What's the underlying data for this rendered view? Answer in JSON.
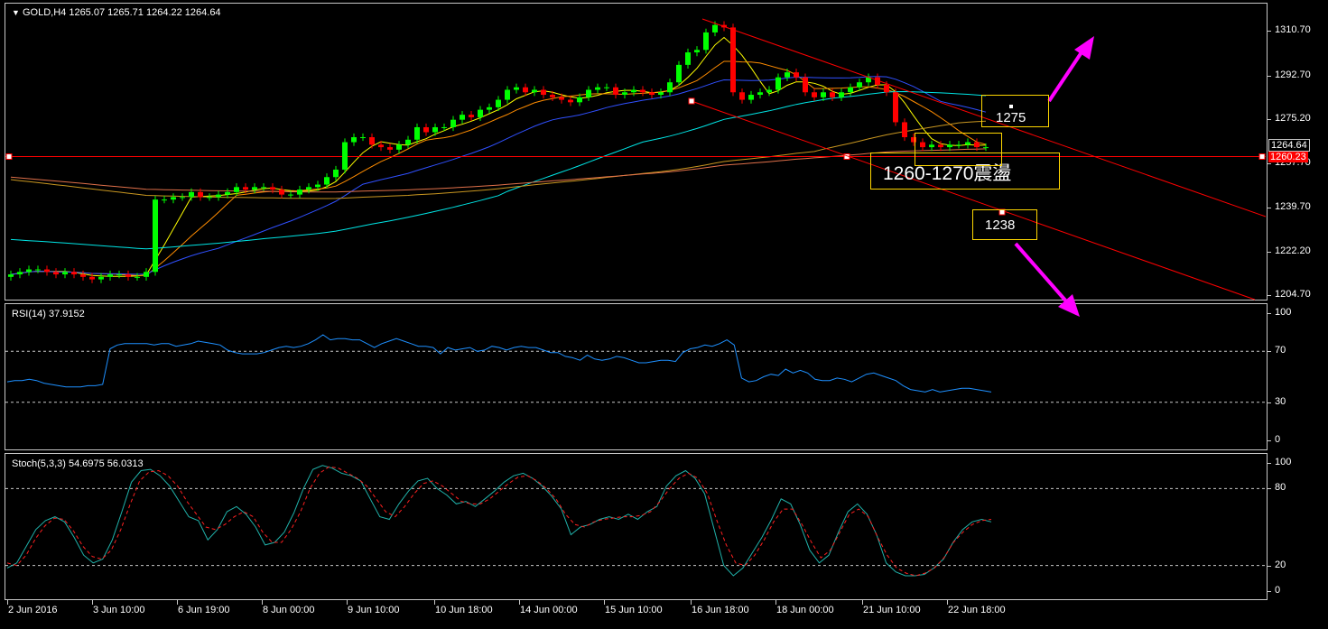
{
  "chart_data": [
    {
      "type": "candlestick",
      "header": "GOLD,H4  1265.07 1265.71 1264.22 1264.64",
      "symbol": "GOLD",
      "timeframe": "H4",
      "ohlc_current": {
        "open": 1265.07,
        "high": 1265.71,
        "low": 1264.22,
        "close": 1264.64
      },
      "y_ticks": [
        "1310.70",
        "1292.70",
        "1275.20",
        "1257.70",
        "1239.70",
        "1222.20",
        "1204.70"
      ],
      "ylim": [
        1203,
        1324
      ],
      "current_price_label": "1264.64",
      "horizontal_line_label": "1260.23",
      "horizontal_line_value": 1260.23,
      "x_ticks": [
        "2 Jun 2016",
        "3 Jun 10:00",
        "6 Jun 19:00",
        "8 Jun 00:00",
        "9 Jun 10:00",
        "10 Jun 18:00",
        "14 Jun 00:00",
        "15 Jun 10:00",
        "16 Jun 18:00",
        "18 Jun 00:00",
        "21 Jun 10:00",
        "22 Jun 18:00"
      ],
      "closes": [
        1213,
        1214,
        1215,
        1215,
        1214,
        1213,
        1214,
        1213,
        1212,
        1211,
        1212,
        1213,
        1213,
        1212,
        1212,
        1214,
        1243,
        1243,
        1244,
        1244,
        1246,
        1244,
        1244,
        1245,
        1246,
        1248,
        1247,
        1248,
        1248,
        1247,
        1245,
        1245,
        1247,
        1248,
        1249,
        1252,
        1255,
        1266,
        1268,
        1268,
        1265,
        1264,
        1263,
        1265,
        1267,
        1272,
        1270,
        1272,
        1272,
        1275,
        1277,
        1276,
        1279,
        1280,
        1283,
        1287,
        1288,
        1286,
        1287,
        1285,
        1284,
        1283,
        1282,
        1284,
        1287,
        1288,
        1288,
        1285,
        1286,
        1287,
        1286,
        1285,
        1286,
        1290,
        1297,
        1302,
        1303,
        1310,
        1313,
        1312,
        1286,
        1283,
        1285,
        1286,
        1287,
        1292,
        1294,
        1292,
        1286,
        1284,
        1286,
        1284,
        1286,
        1288,
        1290,
        1292,
        1289,
        1286,
        1274,
        1268,
        1266,
        1264,
        1265,
        1264,
        1265,
        1265,
        1266,
        1264,
        1264
      ],
      "annotations": [
        {
          "label": "1275",
          "target_direction": "up"
        },
        {
          "label": "1260-1270震盪"
        },
        {
          "label": "1238",
          "target_direction": "down"
        }
      ],
      "accent_colors": {
        "bull": "#00ff00",
        "bear": "#ff0000",
        "channel": "#ff0000",
        "arrow": "#ff00ff",
        "box": "#ffd700"
      }
    },
    {
      "type": "line",
      "title": "RSI(14) 37.9152",
      "name": "RSI(14)",
      "value": 37.9152,
      "y_ticks": [
        "100",
        "70",
        "30",
        "0"
      ],
      "levels": [
        70,
        30
      ],
      "ylim": [
        0,
        100
      ],
      "values": [
        46,
        47,
        47,
        48,
        47,
        45,
        44,
        43,
        42,
        42,
        42,
        43,
        43,
        44,
        72,
        75,
        76,
        76,
        76,
        76,
        75,
        76,
        76,
        74,
        75,
        76,
        78,
        77,
        76,
        75,
        71,
        69,
        68,
        68,
        68,
        69,
        71,
        73,
        74,
        73,
        74,
        76,
        79,
        83,
        79,
        80,
        80,
        79,
        79,
        76,
        73,
        76,
        78,
        80,
        78,
        76,
        74,
        74,
        73,
        68,
        73,
        71,
        72,
        73,
        70,
        71,
        74,
        73,
        71,
        73,
        74,
        73,
        73,
        71,
        69,
        69,
        66,
        65,
        63,
        67,
        64,
        63,
        64,
        66,
        65,
        63,
        61,
        61,
        62,
        63,
        63,
        62,
        69,
        72,
        73,
        75,
        74,
        76,
        79,
        75,
        49,
        46,
        47,
        50,
        52,
        51,
        56,
        53,
        55,
        53,
        48,
        47,
        47,
        49,
        48,
        46,
        49,
        52,
        53,
        51,
        49,
        47,
        43,
        40,
        39,
        38,
        40,
        38,
        39,
        40,
        41,
        41,
        40,
        39,
        38
      ]
    },
    {
      "type": "line",
      "title": "Stoch(5,3,3) 54.6975 56.0313",
      "name": "Stoch(5,3,3)",
      "main_value": 54.6975,
      "signal_value": 56.0313,
      "y_ticks": [
        "100",
        "80",
        "20",
        "0"
      ],
      "levels": [
        80,
        20
      ],
      "ylim": [
        0,
        100
      ],
      "main": [
        18,
        22,
        35,
        48,
        55,
        58,
        54,
        42,
        28,
        22,
        25,
        40,
        62,
        85,
        94,
        95,
        90,
        82,
        70,
        58,
        55,
        40,
        48,
        62,
        66,
        60,
        50,
        36,
        38,
        46,
        61,
        80,
        95,
        98,
        96,
        92,
        90,
        86,
        72,
        58,
        56,
        68,
        78,
        86,
        88,
        80,
        75,
        68,
        70,
        66,
        72,
        78,
        85,
        90,
        92,
        88,
        82,
        74,
        64,
        44,
        50,
        52,
        56,
        58,
        56,
        60,
        56,
        62,
        66,
        82,
        90,
        94,
        88,
        76,
        48,
        20,
        12,
        18,
        30,
        42,
        56,
        72,
        68,
        52,
        32,
        22,
        28,
        46,
        62,
        68,
        60,
        44,
        22,
        15,
        12,
        12,
        13,
        18,
        25,
        38,
        48,
        54,
        56,
        54
      ],
      "signal": [
        22,
        20,
        28,
        41,
        51,
        57,
        56,
        47,
        35,
        27,
        25,
        32,
        48,
        68,
        86,
        93,
        94,
        90,
        82,
        70,
        60,
        50,
        48,
        52,
        58,
        62,
        58,
        46,
        38,
        38,
        48,
        62,
        80,
        92,
        97,
        96,
        92,
        88,
        82,
        72,
        62,
        58,
        66,
        76,
        84,
        86,
        82,
        76,
        70,
        68,
        68,
        72,
        78,
        84,
        89,
        90,
        86,
        80,
        72,
        60,
        52,
        50,
        54,
        56,
        57,
        58,
        58,
        59,
        62,
        70,
        80,
        88,
        92,
        88,
        76,
        55,
        36,
        22,
        20,
        28,
        40,
        54,
        64,
        64,
        52,
        38,
        26,
        32,
        46,
        60,
        64,
        58,
        42,
        28,
        18,
        14,
        12,
        14,
        18,
        26,
        38,
        46,
        52,
        55,
        56
      ]
    }
  ],
  "overlays": {
    "channel_top": {
      "from": [
        762,
        1322
      ],
      "to": [
        1399,
        1240
      ],
      "from_label": "channel-top-start",
      "to_label": "channel-top-end"
    }
  }
}
